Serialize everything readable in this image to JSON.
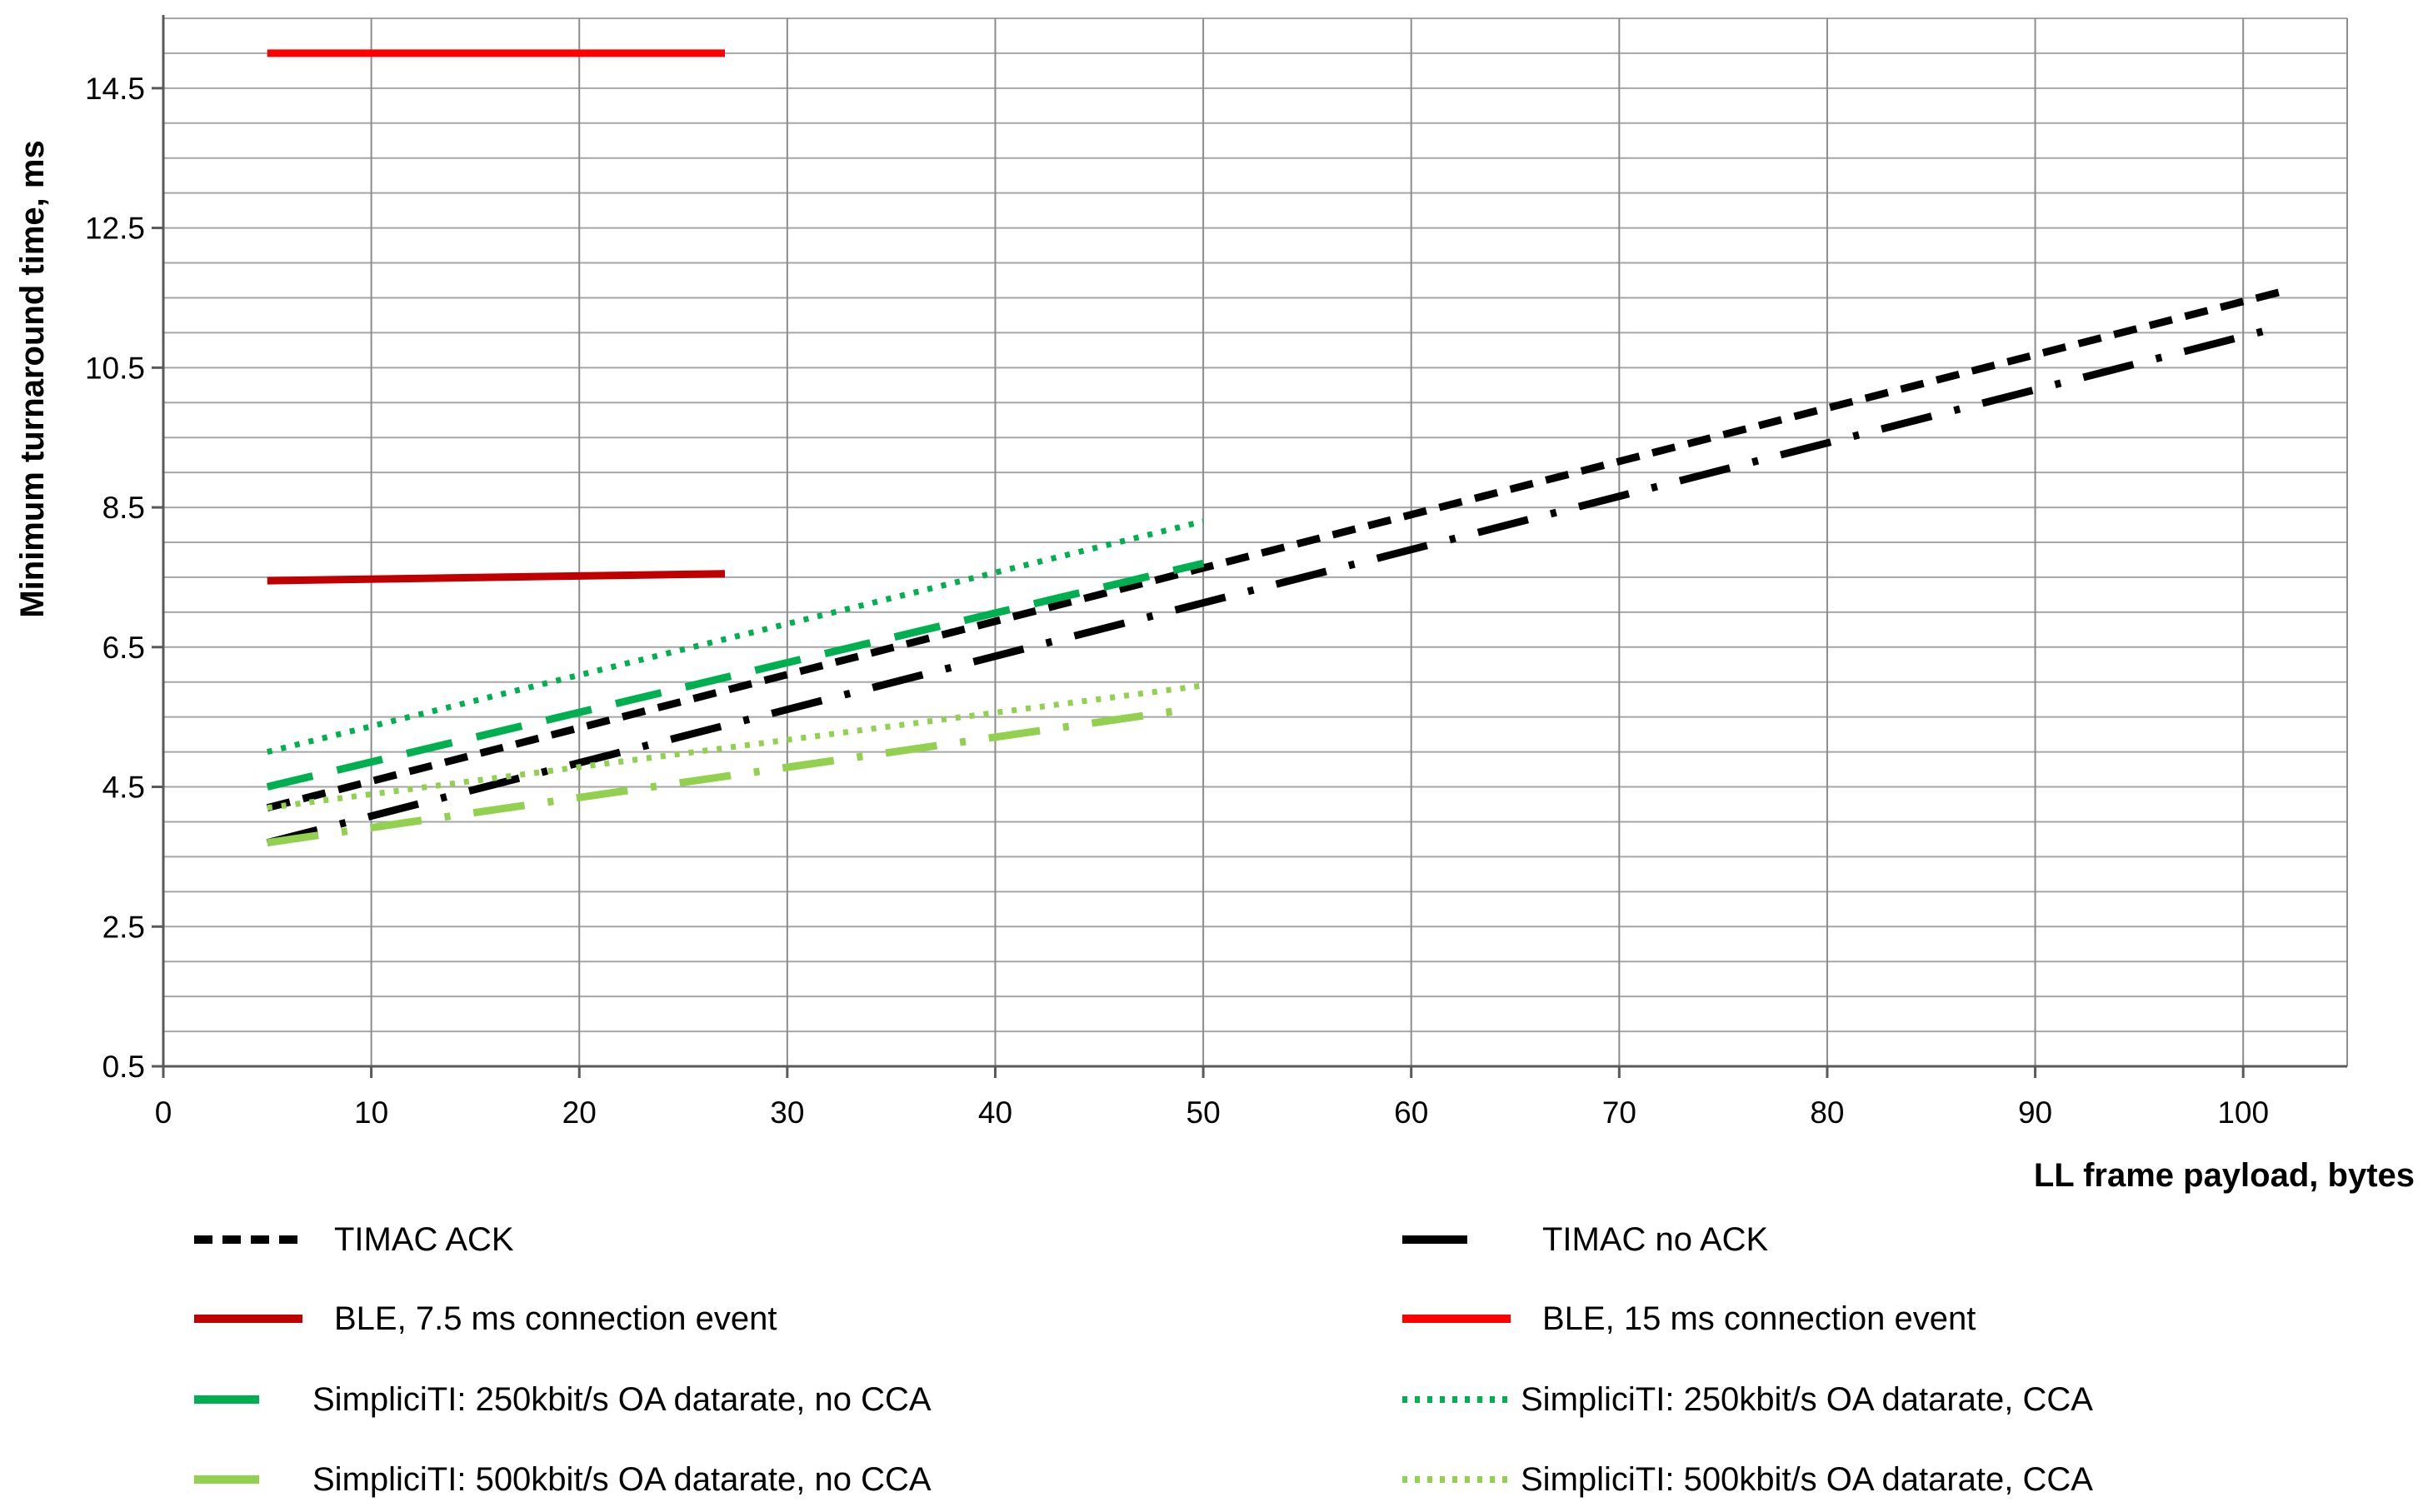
{
  "chart_data": {
    "type": "line",
    "xlabel": "LL frame payload,  bytes",
    "ylabel": "Minimum turnaround time, ms",
    "xlim": [
      0,
      105
    ],
    "ylim": [
      0.5,
      15.5
    ],
    "x_ticks": [
      0,
      10,
      20,
      30,
      40,
      50,
      60,
      70,
      80,
      90,
      100
    ],
    "y_ticks": [
      0.5,
      2.5,
      4.5,
      6.5,
      8.5,
      10.5,
      12.5,
      14.5
    ],
    "y_minor_step": 0.5,
    "grid": true,
    "legend_position": "bottom",
    "series": [
      {
        "name": "TIMAC ACK",
        "color": "#000000",
        "style": "dashed",
        "x": [
          5,
          102
        ],
        "y": [
          4.2,
          11.6
        ]
      },
      {
        "name": "TIMAC no ACK",
        "color": "#000000",
        "style": "longdash-dot",
        "x": [
          5,
          102
        ],
        "y": [
          3.7,
          11.1
        ]
      },
      {
        "name": "BLE, 7.5 ms connection event",
        "color": "#c00000",
        "style": "solid",
        "x": [
          5,
          27
        ],
        "y": [
          7.45,
          7.55
        ]
      },
      {
        "name": "BLE, 15 ms connection event",
        "color": "#ff0000",
        "style": "solid",
        "x": [
          5,
          27
        ],
        "y": [
          15.0,
          15.0
        ]
      },
      {
        "name": "SimpliciTI: 250kbit/s OA datarate,  no CCA",
        "color": "#00b050",
        "style": "longdash",
        "x": [
          5,
          50
        ],
        "y": [
          4.5,
          7.7
        ]
      },
      {
        "name": "SimpliciTI: 250kbit/s OA datarate,  CCA",
        "color": "#00b050",
        "style": "dotted",
        "x": [
          5,
          50
        ],
        "y": [
          5.0,
          8.3
        ]
      },
      {
        "name": "SimpliciTI: 500kbit/s OA datarate,  no CCA",
        "color": "#92d050",
        "style": "longdash-dot",
        "x": [
          5,
          49
        ],
        "y": [
          3.7,
          5.6
        ]
      },
      {
        "name": "SimpliciTI: 500kbit/s OA datarate,  CCA",
        "color": "#92d050",
        "style": "dotted",
        "x": [
          5,
          50
        ],
        "y": [
          4.2,
          5.95
        ]
      }
    ]
  }
}
